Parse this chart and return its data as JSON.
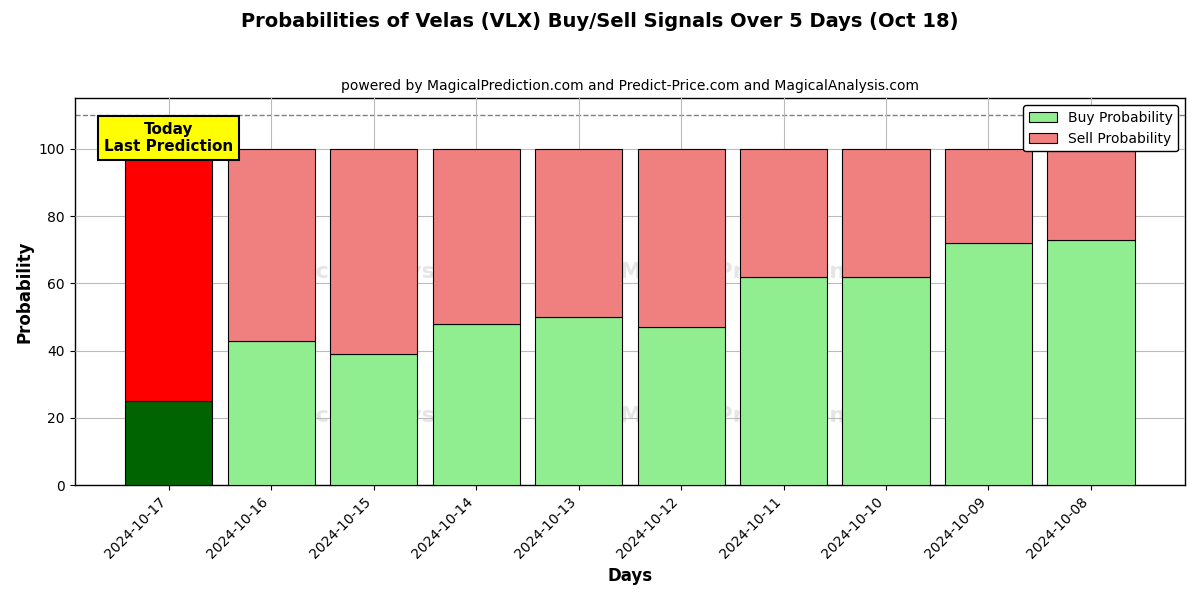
{
  "title": "Probabilities of Velas (VLX) Buy/Sell Signals Over 5 Days (Oct 18)",
  "subtitle": "powered by MagicalPrediction.com and Predict-Price.com and MagicalAnalysis.com",
  "xlabel": "Days",
  "ylabel": "Probability",
  "categories": [
    "2024-10-17",
    "2024-10-16",
    "2024-10-15",
    "2024-10-14",
    "2024-10-13",
    "2024-10-12",
    "2024-10-11",
    "2024-10-10",
    "2024-10-09",
    "2024-10-08"
  ],
  "buy_values": [
    25,
    43,
    39,
    48,
    50,
    47,
    62,
    62,
    72,
    73
  ],
  "sell_values": [
    75,
    57,
    61,
    52,
    50,
    53,
    38,
    38,
    28,
    27
  ],
  "buy_color_today": "#006400",
  "buy_color_normal": "#90EE90",
  "sell_color_today": "#FF0000",
  "sell_color_normal": "#F08080",
  "today_annotation": "Today\nLast Prediction",
  "ylim": [
    0,
    115
  ],
  "dashed_line_y": 110,
  "legend_buy_label": "Buy Probability",
  "legend_sell_label": "Sell Probability",
  "bar_width": 0.85,
  "grid_color": "#bbbbbb",
  "background_color": "#ffffff",
  "yticks": [
    0,
    20,
    40,
    60,
    80,
    100
  ]
}
